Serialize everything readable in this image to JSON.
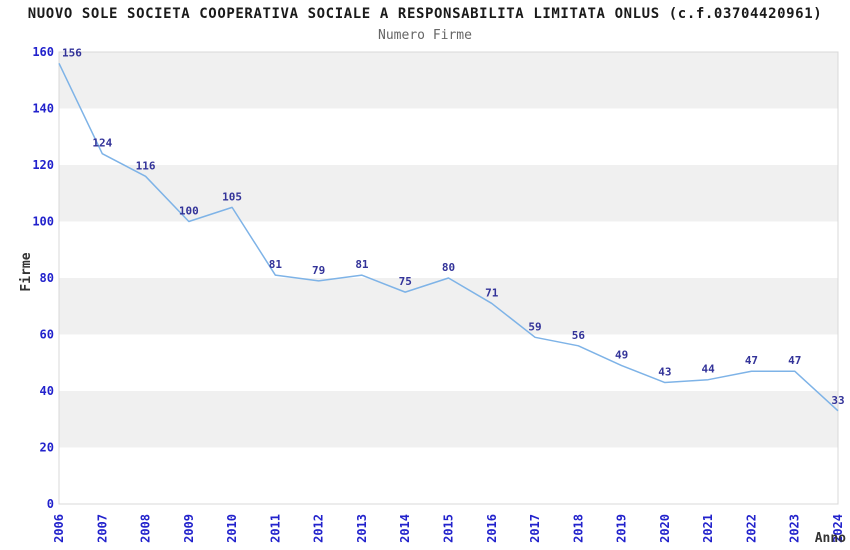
{
  "header": {
    "title": "NUOVO SOLE SOCIETA COOPERATIVA SOCIALE A RESPONSABILITA LIMITATA ONLUS (c.f.03704420961)",
    "subtitle": "Numero Firme"
  },
  "chart_data": {
    "type": "line",
    "title": "NUOVO SOLE SOCIETA COOPERATIVA SOCIALE A RESPONSABILITA LIMITATA ONLUS (c.f.03704420961)",
    "subtitle": "Numero Firme",
    "xlabel": "Anno",
    "ylabel": "Firme",
    "categories": [
      "2006",
      "2007",
      "2008",
      "2009",
      "2010",
      "2011",
      "2012",
      "2013",
      "2014",
      "2015",
      "2016",
      "2017",
      "2018",
      "2019",
      "2020",
      "2021",
      "2022",
      "2023",
      "2024"
    ],
    "values": [
      156,
      124,
      116,
      100,
      105,
      81,
      79,
      81,
      75,
      80,
      71,
      59,
      56,
      49,
      43,
      44,
      47,
      47,
      33
    ],
    "ylim": [
      0,
      160
    ],
    "ytick_step": 20,
    "yticks": [
      0,
      20,
      40,
      60,
      80,
      100,
      120,
      140,
      160
    ],
    "grid": "alternating-horizontal-bands",
    "legend_position": "none",
    "data_labels_visible": true,
    "colors": {
      "line": "#7eb3e7",
      "data_label": "#333399",
      "tick_label": "#2222cc",
      "band_gray": "#f0f0f0",
      "band_white": "#ffffff",
      "plot_border": "#d8d8d8",
      "title": "#1a1a1a",
      "subtitle": "#666666",
      "axis_title": "#333333"
    }
  }
}
